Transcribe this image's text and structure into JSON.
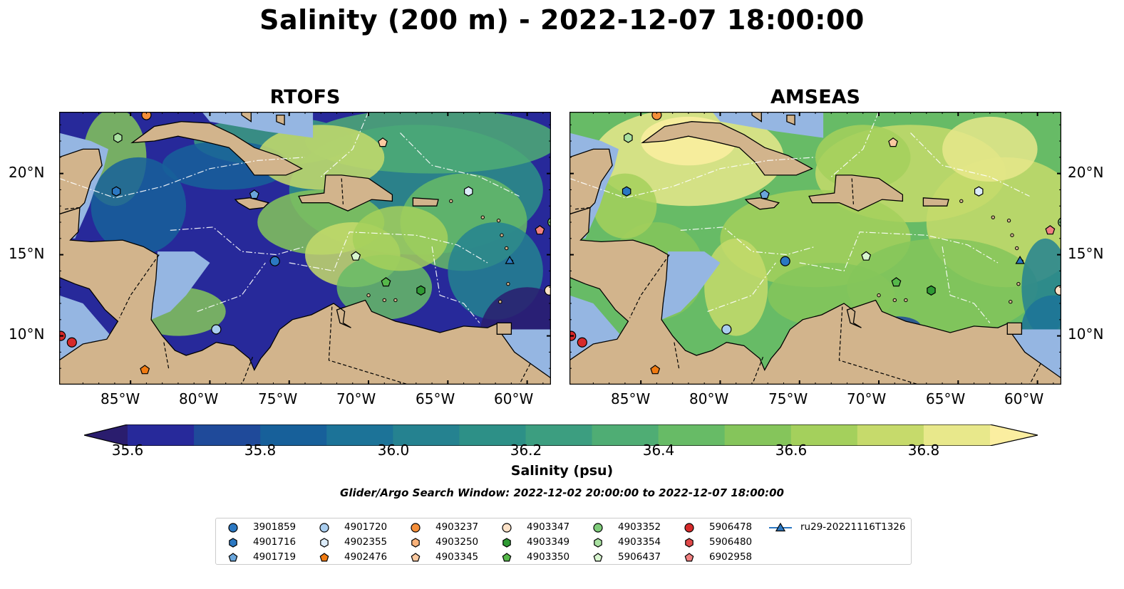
{
  "figure": {
    "title": "Salinity (200 m) - 2022-12-07 18:00:00"
  },
  "panels": [
    {
      "title": "RTOFS",
      "scheme": "rtofs"
    },
    {
      "title": "AMSEAS",
      "scheme": "amseas"
    }
  ],
  "axes": {
    "lon_ticks": [
      "85°W",
      "80°W",
      "75°W",
      "70°W",
      "65°W",
      "60°W"
    ],
    "lat_ticks": [
      "20°N",
      "15°N",
      "10°N"
    ],
    "lon_range": [
      -89.5,
      -58.5
    ],
    "lat_range": [
      7.0,
      23.8
    ]
  },
  "colorbar": {
    "label": "Salinity (psu)",
    "ticks": [
      "35.6",
      "35.8",
      "36.0",
      "36.2",
      "36.4",
      "36.6",
      "36.8"
    ],
    "range": [
      35.55,
      36.97
    ],
    "colors": [
      "#2a1d6e",
      "#27299a",
      "#1f4a9a",
      "#17609a",
      "#1c7398",
      "#258290",
      "#2d9087",
      "#3c9e80",
      "#4fad74",
      "#67bb66",
      "#85c55b",
      "#a4d05c",
      "#c6da6b",
      "#e8e88b",
      "#fbeea0"
    ]
  },
  "search_window": "Glider/Argo Search Window: 2022-12-02 20:00:00 to 2022-12-07 18:00:00",
  "legend": [
    {
      "label": "3901859",
      "marker": "circle",
      "color": "#2b78c2"
    },
    {
      "label": "4901716",
      "marker": "hexagon",
      "color": "#2b78c2"
    },
    {
      "label": "4901719",
      "marker": "pentagon",
      "color": "#6aa6dc"
    },
    {
      "label": "4901720",
      "marker": "circle",
      "color": "#a9cdee"
    },
    {
      "label": "4902355",
      "marker": "hexagon",
      "color": "#dcecfa"
    },
    {
      "label": "4902476",
      "marker": "pentagon",
      "color": "#f07b12"
    },
    {
      "label": "4903237",
      "marker": "circle",
      "color": "#f58f3a"
    },
    {
      "label": "4903250",
      "marker": "hexagon",
      "color": "#f9b27a"
    },
    {
      "label": "4903345",
      "marker": "pentagon",
      "color": "#fbc9a0"
    },
    {
      "label": "4903347",
      "marker": "circle",
      "color": "#fde2c8"
    },
    {
      "label": "4903349",
      "marker": "hexagon",
      "color": "#2e9a33"
    },
    {
      "label": "4903350",
      "marker": "pentagon",
      "color": "#56b84a"
    },
    {
      "label": "4903352",
      "marker": "circle",
      "color": "#7fcc7a"
    },
    {
      "label": "4903354",
      "marker": "hexagon",
      "color": "#a8e0a0"
    },
    {
      "label": "5906437",
      "marker": "pentagon",
      "color": "#d8f5cf"
    },
    {
      "label": "5906478",
      "marker": "circle",
      "color": "#d62a2a"
    },
    {
      "label": "5906480",
      "marker": "hexagon",
      "color": "#e04848"
    },
    {
      "label": "6902958",
      "marker": "pentagon",
      "color": "#f08080"
    },
    {
      "label": "ru29-20221116T1326",
      "marker": "triangle-line",
      "color": "#2b78c2"
    }
  ],
  "markers_on_map": [
    {
      "id": "4903237",
      "lon": -84.0,
      "lat": 23.6
    },
    {
      "id": "4903354",
      "lon": -85.8,
      "lat": 22.2
    },
    {
      "id": "4901716",
      "lon": -85.9,
      "lat": 18.9
    },
    {
      "id": "4901719",
      "lon": -77.2,
      "lat": 18.7
    },
    {
      "id": "4903345",
      "lon": -69.1,
      "lat": 21.9
    },
    {
      "id": "4902355",
      "lon": -63.7,
      "lat": 18.9
    },
    {
      "id": "3901859",
      "lon": -75.9,
      "lat": 14.6
    },
    {
      "id": "5906437",
      "lon": -70.8,
      "lat": 14.9
    },
    {
      "id": "4903350",
      "lon": -68.9,
      "lat": 13.3
    },
    {
      "id": "4903349",
      "lon": -66.7,
      "lat": 12.8
    },
    {
      "id": "4901720",
      "lon": -79.6,
      "lat": 10.4
    },
    {
      "id": "5906478",
      "lon": -88.7,
      "lat": 9.6
    },
    {
      "id": "5906478",
      "lon": -89.4,
      "lat": 10.0
    },
    {
      "id": "4902476",
      "lon": -84.1,
      "lat": 7.9
    },
    {
      "id": "6902958",
      "lon": -59.2,
      "lat": 16.5
    },
    {
      "id": "4903352",
      "lon": -58.4,
      "lat": 17.0
    },
    {
      "id": "4903347",
      "lon": -58.6,
      "lat": 12.8
    },
    {
      "id": "ru29-20221116T1326",
      "lon": -61.1,
      "lat": 14.6
    }
  ]
}
